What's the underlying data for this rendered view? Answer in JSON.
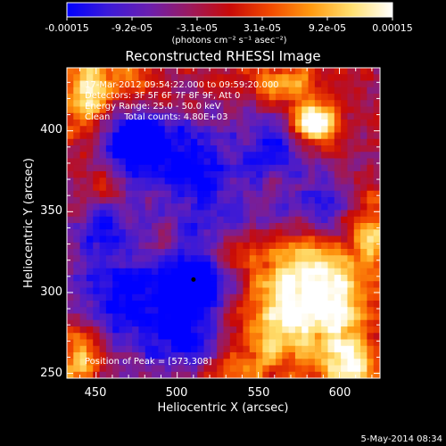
{
  "colorbar": {
    "tick_labels": [
      "-0.00015",
      "-9.2e-05",
      "-3.1e-05",
      "3.1e-05",
      "9.2e-05",
      "0.00015"
    ],
    "unit_label": "(photons cm⁻² s⁻¹ asec⁻²)",
    "palette": [
      "#0000ff",
      "#3b1ad8",
      "#6a1fb0",
      "#9a1a60",
      "#c80a08",
      "#f24a00",
      "#ff9a10",
      "#ffe070",
      "#ffffff"
    ]
  },
  "title": "Reconstructed RHESSI Image",
  "info": {
    "line1": "17-Mar-2012 09:54:22.000 to 09:59:20.000",
    "line2": "Detectors: 3F 5F 6F 7F 8F 9F, Att 0",
    "line3": "Energy Range: 25.0 - 50.0 keV",
    "line4": "Clean     Total counts: 4.80E+03",
    "peak": "Position of Peak = [573,308]"
  },
  "footer_date": "5-May-2014 08:34",
  "chart_data": {
    "type": "heatmap",
    "title": "Reconstructed RHESSI Image",
    "xlabel": "Heliocentric X (arcsec)",
    "ylabel": "Heliocentric Y (arcsec)",
    "xlim": [
      432,
      625
    ],
    "ylim": [
      247,
      439
    ],
    "x_ticks": [
      "450",
      "500",
      "550",
      "600"
    ],
    "y_ticks": [
      "250",
      "300",
      "350",
      "400"
    ],
    "x_tick_values": [
      450,
      500,
      550,
      600
    ],
    "y_tick_values": [
      250,
      300,
      350,
      400
    ],
    "color_range": [
      -0.00015,
      0.00015
    ],
    "peak_position": [
      573,
      308
    ],
    "grid": false
  }
}
